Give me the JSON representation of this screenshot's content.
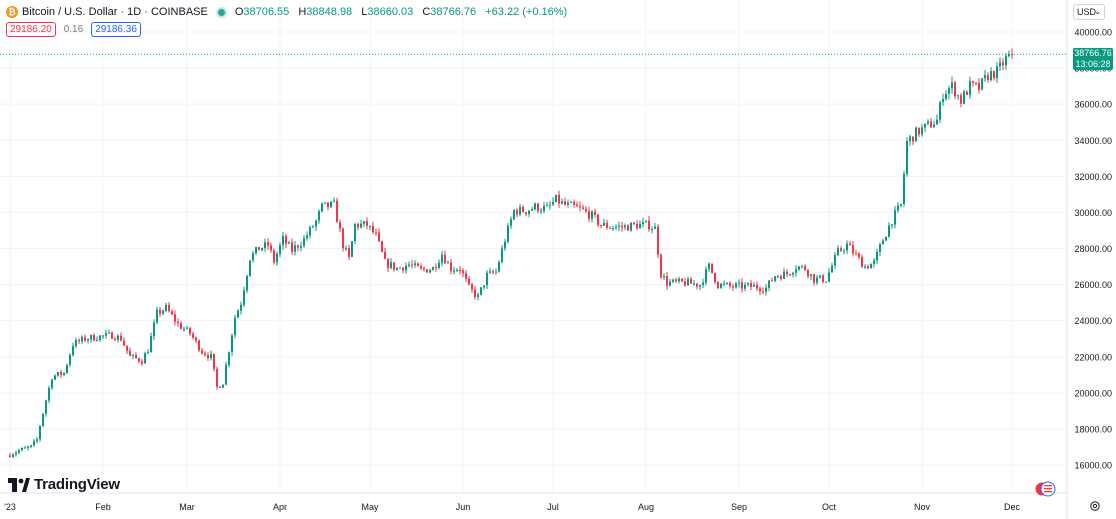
{
  "legend": {
    "symbol": "Bitcoin / U.S. Dollar · 1D · COINBASE",
    "coin_glyph": "₿",
    "o_label": "O",
    "o_value": "38706.55",
    "h_label": "H",
    "h_value": "38848.98",
    "l_label": "L",
    "l_value": "38660.03",
    "c_label": "C",
    "c_value": "38766.76",
    "change": "+63.22 (+0.16%)"
  },
  "quotes": {
    "sell": "29186.20",
    "spread": "0.16",
    "buy": "29186.36"
  },
  "currency": {
    "label": "USD"
  },
  "price_tag": {
    "price": "38766.76",
    "countdown": "13:06:28"
  },
  "brand": {
    "name": "TradingView"
  },
  "colors": {
    "up": "#089981",
    "down": "#f23645",
    "grid": "#f0f3fa",
    "accent": "#26a69a"
  },
  "chart_data": {
    "type": "candlestick",
    "title": "Bitcoin / U.S. Dollar · 1D · COINBASE",
    "ylim": [
      15000,
      41000
    ],
    "y_ticks": [
      16000,
      18000,
      20000,
      22000,
      24000,
      26000,
      28000,
      30000,
      32000,
      34000,
      36000,
      38000,
      40000
    ],
    "y_tick_labels": [
      "16000.00",
      "18000.00",
      "20000.00",
      "22000.00",
      "24000.00",
      "26000.00",
      "28000.00",
      "30000.00",
      "32000.00",
      "34000.00",
      "36000.00",
      "38000.00",
      "40000.00"
    ],
    "x_ticks": [
      {
        "label": "'23",
        "day": 0
      },
      {
        "label": "Feb",
        "day": 31
      },
      {
        "label": "Mar",
        "day": 59
      },
      {
        "label": "Apr",
        "day": 90
      },
      {
        "label": "May",
        "day": 120
      },
      {
        "label": "Jun",
        "day": 151
      },
      {
        "label": "Jul",
        "day": 181
      },
      {
        "label": "Aug",
        "day": 212
      },
      {
        "label": "Sep",
        "day": 243
      },
      {
        "label": "Oct",
        "day": 273
      },
      {
        "label": "Nov",
        "day": 304
      },
      {
        "label": "Dec",
        "day": 334
      }
    ],
    "anchors": [
      [
        0,
        16600
      ],
      [
        3,
        16800
      ],
      [
        7,
        17000
      ],
      [
        9,
        17400
      ],
      [
        10,
        18200
      ],
      [
        12,
        19600
      ],
      [
        14,
        20900
      ],
      [
        18,
        21100
      ],
      [
        21,
        22700
      ],
      [
        25,
        23000
      ],
      [
        29,
        23100
      ],
      [
        34,
        23200
      ],
      [
        37,
        23000
      ],
      [
        40,
        22000
      ],
      [
        44,
        21800
      ],
      [
        46,
        22400
      ],
      [
        49,
        24400
      ],
      [
        52,
        24700
      ],
      [
        56,
        23800
      ],
      [
        60,
        23300
      ],
      [
        64,
        22300
      ],
      [
        67,
        22000
      ],
      [
        69,
        20300
      ],
      [
        71,
        20600
      ],
      [
        73,
        22400
      ],
      [
        75,
        24200
      ],
      [
        77,
        25000
      ],
      [
        80,
        27500
      ],
      [
        83,
        28000
      ],
      [
        86,
        28200
      ],
      [
        88,
        27300
      ],
      [
        91,
        28500
      ],
      [
        94,
        27900
      ],
      [
        98,
        28500
      ],
      [
        102,
        29500
      ],
      [
        104,
        30300
      ],
      [
        108,
        30400
      ],
      [
        111,
        28200
      ],
      [
        113,
        27400
      ],
      [
        115,
        29300
      ],
      [
        119,
        29300
      ],
      [
        122,
        28700
      ],
      [
        125,
        27200
      ],
      [
        129,
        26900
      ],
      [
        133,
        27100
      ],
      [
        137,
        26800
      ],
      [
        141,
        26900
      ],
      [
        144,
        27700
      ],
      [
        147,
        26900
      ],
      [
        150,
        26900
      ],
      [
        153,
        25800
      ],
      [
        156,
        25300
      ],
      [
        159,
        26500
      ],
      [
        162,
        26700
      ],
      [
        165,
        28500
      ],
      [
        168,
        30100
      ],
      [
        172,
        30100
      ],
      [
        175,
        30300
      ],
      [
        179,
        30200
      ],
      [
        182,
        30700
      ],
      [
        185,
        30400
      ],
      [
        188,
        30300
      ],
      [
        191,
        30100
      ],
      [
        194,
        29800
      ],
      [
        197,
        29300
      ],
      [
        201,
        29200
      ],
      [
        205,
        29200
      ],
      [
        209,
        29300
      ],
      [
        213,
        29300
      ],
      [
        215,
        29100
      ],
      [
        217,
        26600
      ],
      [
        219,
        26100
      ],
      [
        225,
        26100
      ],
      [
        230,
        26000
      ],
      [
        233,
        27000
      ],
      [
        236,
        26000
      ],
      [
        240,
        25900
      ],
      [
        244,
        25900
      ],
      [
        248,
        25900
      ],
      [
        252,
        25800
      ],
      [
        255,
        26500
      ],
      [
        259,
        26600
      ],
      [
        262,
        27000
      ],
      [
        265,
        26900
      ],
      [
        268,
        26300
      ],
      [
        272,
        26300
      ],
      [
        276,
        27800
      ],
      [
        279,
        28200
      ],
      [
        282,
        27600
      ],
      [
        285,
        27000
      ],
      [
        288,
        27200
      ],
      [
        291,
        28500
      ],
      [
        294,
        29600
      ],
      [
        297,
        30400
      ],
      [
        299,
        33900
      ],
      [
        302,
        34400
      ],
      [
        306,
        34800
      ],
      [
        309,
        35100
      ],
      [
        311,
        36600
      ],
      [
        314,
        37000
      ],
      [
        317,
        36200
      ],
      [
        320,
        37000
      ],
      [
        323,
        36900
      ],
      [
        326,
        37600
      ],
      [
        329,
        37800
      ],
      [
        332,
        38500
      ],
      [
        334,
        38766
      ]
    ],
    "current_price": 38766.76
  }
}
